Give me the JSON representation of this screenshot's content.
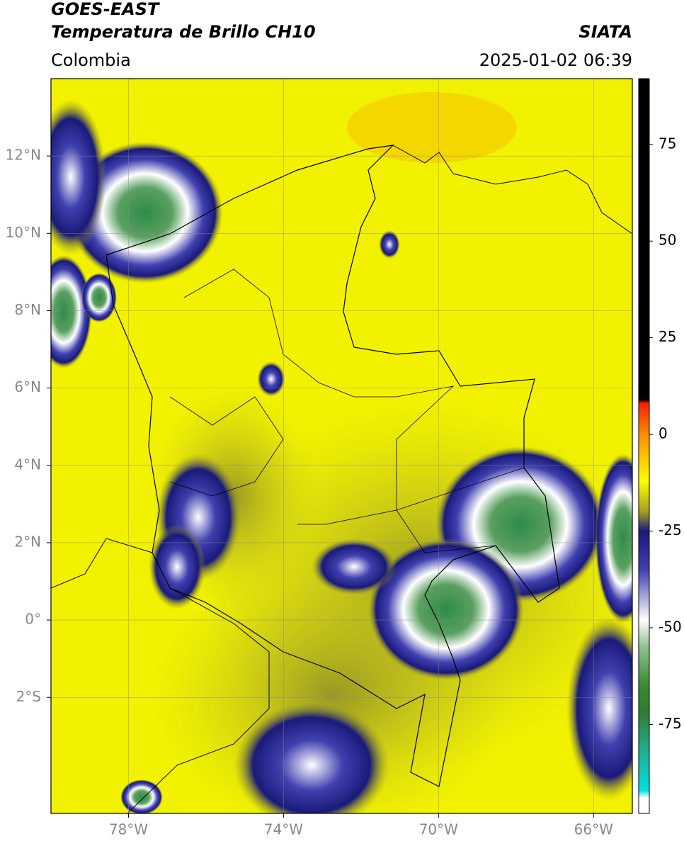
{
  "header": {
    "title": "GOES-EAST",
    "subtitle": "Temperatura de Brillo CH10",
    "region": "Colombia",
    "source": "SIATA",
    "datetime": "2025-01-02 06:39"
  },
  "chart_data": {
    "type": "map",
    "xlim": [
      -80,
      -65
    ],
    "ylim": [
      -5,
      14
    ],
    "xticks": [
      {
        "value": -78,
        "label": "78°W"
      },
      {
        "value": -74,
        "label": "74°W"
      },
      {
        "value": -70,
        "label": "70°W"
      },
      {
        "value": -66,
        "label": "66°W"
      }
    ],
    "yticks": [
      {
        "value": 12,
        "label": "12°N"
      },
      {
        "value": 10,
        "label": "10°N"
      },
      {
        "value": 8,
        "label": "8°N"
      },
      {
        "value": 6,
        "label": "6°N"
      },
      {
        "value": 4,
        "label": "4°N"
      },
      {
        "value": 2,
        "label": "2°N"
      },
      {
        "value": 0,
        "label": "0°"
      },
      {
        "value": -2,
        "label": "2°S"
      }
    ],
    "grid": true,
    "colorbar": {
      "lim": [
        -98,
        92
      ],
      "ticks": [
        75,
        50,
        25,
        0,
        -25,
        -50,
        -75
      ],
      "stops": [
        {
          "value": 92,
          "color": "#000000"
        },
        {
          "value": 9,
          "color": "#000000"
        },
        {
          "value": 8,
          "color": "#ff2000"
        },
        {
          "value": 0,
          "color": "#ff8c00"
        },
        {
          "value": -12,
          "color": "#ffff00"
        },
        {
          "value": -20,
          "color": "#a0a020"
        },
        {
          "value": -25,
          "color": "#1a1a7a"
        },
        {
          "value": -35,
          "color": "#4040b0"
        },
        {
          "value": -48,
          "color": "#ffffff"
        },
        {
          "value": -55,
          "color": "#90c090"
        },
        {
          "value": -65,
          "color": "#3a8a30"
        },
        {
          "value": -72,
          "color": "#2e7d32"
        },
        {
          "value": -82,
          "color": "#20b090"
        },
        {
          "value": -92,
          "color": "#00e0e0"
        },
        {
          "value": -94,
          "color": "#ffffff"
        },
        {
          "value": -98,
          "color": "#ffffff"
        }
      ]
    }
  }
}
